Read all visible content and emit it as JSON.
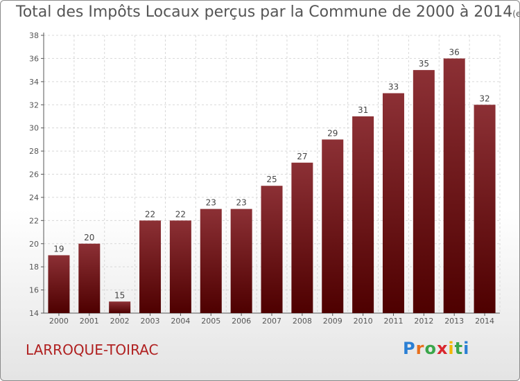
{
  "title": "Total des Impôts Locaux perçus par la Commune de 2000 à 2014",
  "unit": "(en milliers d'€)",
  "commune": "LARROQUE-TOIRAC",
  "logo": {
    "letters": [
      "P",
      "r",
      "o",
      "x",
      "i",
      "t",
      "i"
    ],
    "colors": [
      "#2a7fd4",
      "#e86f1c",
      "#3aa64a",
      "#d9262e",
      "#f2b705",
      "#3aa64a",
      "#2a7fd4"
    ]
  },
  "chart_data": {
    "type": "bar",
    "title": "Total des Impôts Locaux perçus par la Commune de 2000 à 2014",
    "xlabel": "",
    "ylabel": "",
    "categories": [
      "2000",
      "2001",
      "2002",
      "2003",
      "2004",
      "2005",
      "2006",
      "2007",
      "2008",
      "2009",
      "2010",
      "2011",
      "2012",
      "2013",
      "2014"
    ],
    "values": [
      19,
      20,
      15,
      22,
      22,
      23,
      23,
      25,
      27,
      29,
      31,
      33,
      35,
      36,
      32
    ],
    "ylim": [
      14,
      38
    ],
    "yticks": [
      14,
      16,
      18,
      20,
      22,
      24,
      26,
      28,
      30,
      32,
      34,
      36,
      38
    ],
    "grid": true,
    "bar_color": "#7a1418"
  }
}
